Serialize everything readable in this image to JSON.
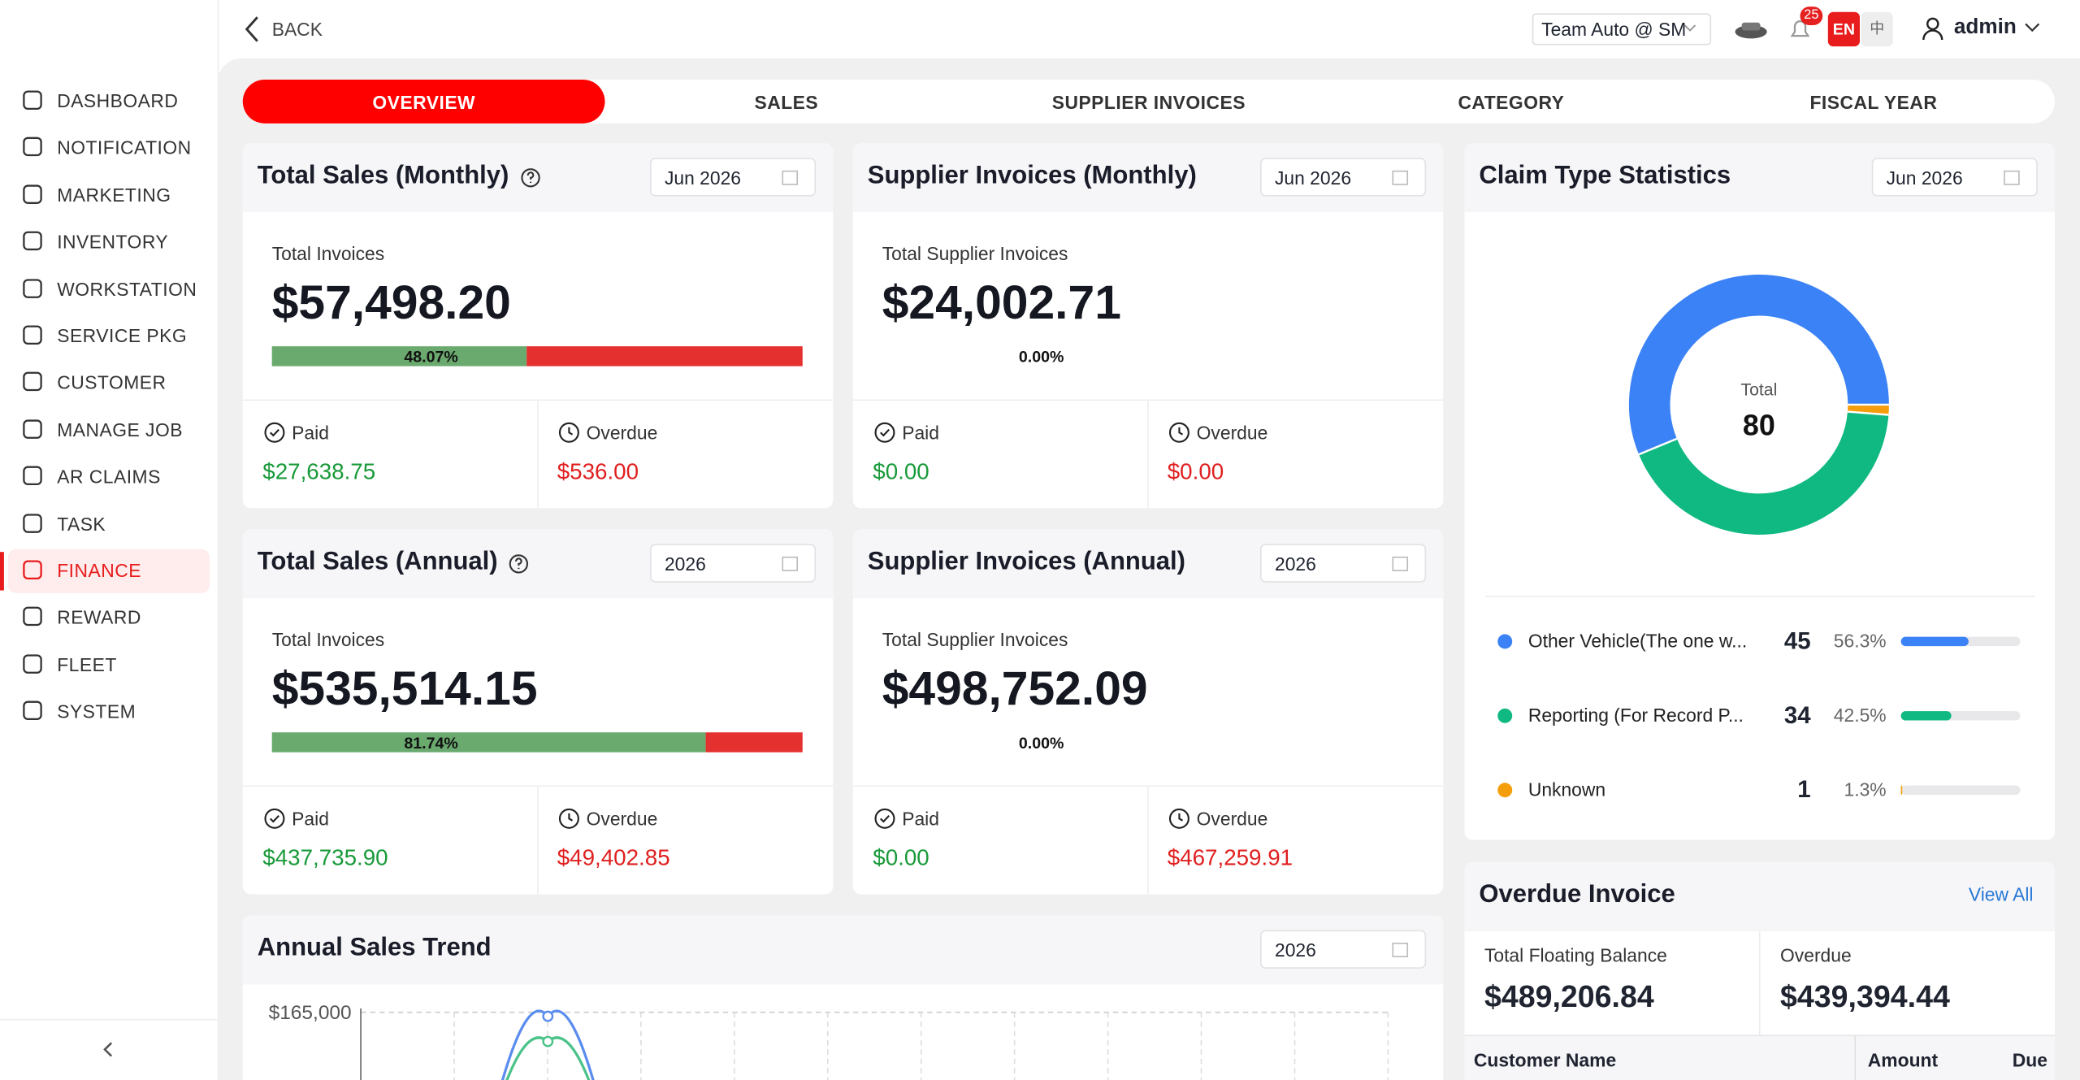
{
  "header": {
    "back": "BACK",
    "team": "Team Auto @ SM",
    "badge": "25",
    "lang_en": "EN",
    "lang_zh": "中",
    "user": "admin"
  },
  "sidebar": [
    {
      "label": "DASHBOARD"
    },
    {
      "label": "NOTIFICATION"
    },
    {
      "label": "MARKETING"
    },
    {
      "label": "INVENTORY"
    },
    {
      "label": "WORKSTATION"
    },
    {
      "label": "SERVICE PKG"
    },
    {
      "label": "CUSTOMER"
    },
    {
      "label": "MANAGE JOB"
    },
    {
      "label": "AR CLAIMS"
    },
    {
      "label": "TASK"
    },
    {
      "label": "FINANCE",
      "active": true
    },
    {
      "label": "REWARD"
    },
    {
      "label": "FLEET"
    },
    {
      "label": "SYSTEM"
    }
  ],
  "tabs": [
    {
      "label": "OVERVIEW",
      "active": true
    },
    {
      "label": "SALES"
    },
    {
      "label": "SUPPLIER INVOICES"
    },
    {
      "label": "CATEGORY"
    },
    {
      "label": "FISCAL YEAR"
    }
  ],
  "cards": [
    {
      "title": "Total Sales (Monthly)",
      "help": true,
      "period": "Jun 2026",
      "total_label": "Total Invoices",
      "total": "$57,498.20",
      "bar": true,
      "progress": 48.07,
      "progress_label": "48.07%",
      "paid_label": "Paid",
      "paid": "$27,638.75",
      "overdue_label": "Overdue",
      "overdue": "$536.00"
    },
    {
      "title": "Supplier Invoices (Monthly)",
      "help": false,
      "period": "Jun 2026",
      "total_label": "Total Supplier Invoices",
      "total": "$24,002.71",
      "bar": false,
      "progress": 0,
      "progress_label": "0.00%",
      "paid_label": "Paid",
      "paid": "$0.00",
      "overdue_label": "Overdue",
      "overdue": "$0.00"
    },
    {
      "title": "Total Sales (Annual)",
      "help": true,
      "period": "2026",
      "total_label": "Total Invoices",
      "total": "$535,514.15",
      "bar": true,
      "progress": 81.74,
      "progress_label": "81.74%",
      "paid_label": "Paid",
      "paid": "$437,735.90",
      "overdue_label": "Overdue",
      "overdue": "$49,402.85"
    },
    {
      "title": "Supplier Invoices (Annual)",
      "help": false,
      "period": "2026",
      "total_label": "Total Supplier Invoices",
      "total": "$498,752.09",
      "bar": false,
      "progress": 0,
      "progress_label": "0.00%",
      "paid_label": "Paid",
      "paid": "$0.00",
      "overdue_label": "Overdue",
      "overdue": "$467,259.91"
    }
  ],
  "claims": {
    "title": "Claim Type Statistics",
    "period": "Jun 2026",
    "total_label": "Total",
    "total": 80,
    "items": [
      {
        "name": "Other Vehicle(The one w...",
        "count": 45,
        "percent": 56.3,
        "percent_label": "56.3%",
        "color": "#3b82f6"
      },
      {
        "name": "Reporting (For Record P...",
        "count": 34,
        "percent": 42.5,
        "percent_label": "42.5%",
        "color": "#10b981"
      },
      {
        "name": "Unknown",
        "count": 1,
        "percent": 1.3,
        "percent_label": "1.3%",
        "color": "#f59e0b"
      }
    ]
  },
  "overdue": {
    "title": "Overdue Invoice",
    "view_all": "View All",
    "floating_label": "Total Floating Balance",
    "floating": "$489,206.84",
    "overdue_label": "Overdue",
    "overdue": "$439,394.44",
    "columns": [
      "Customer Name",
      "Amount",
      "Due"
    ]
  },
  "trend": {
    "title": "Annual Sales Trend",
    "period": "2026",
    "yticks": [
      {
        "value": 165000,
        "label": "$165,000"
      }
    ]
  }
}
